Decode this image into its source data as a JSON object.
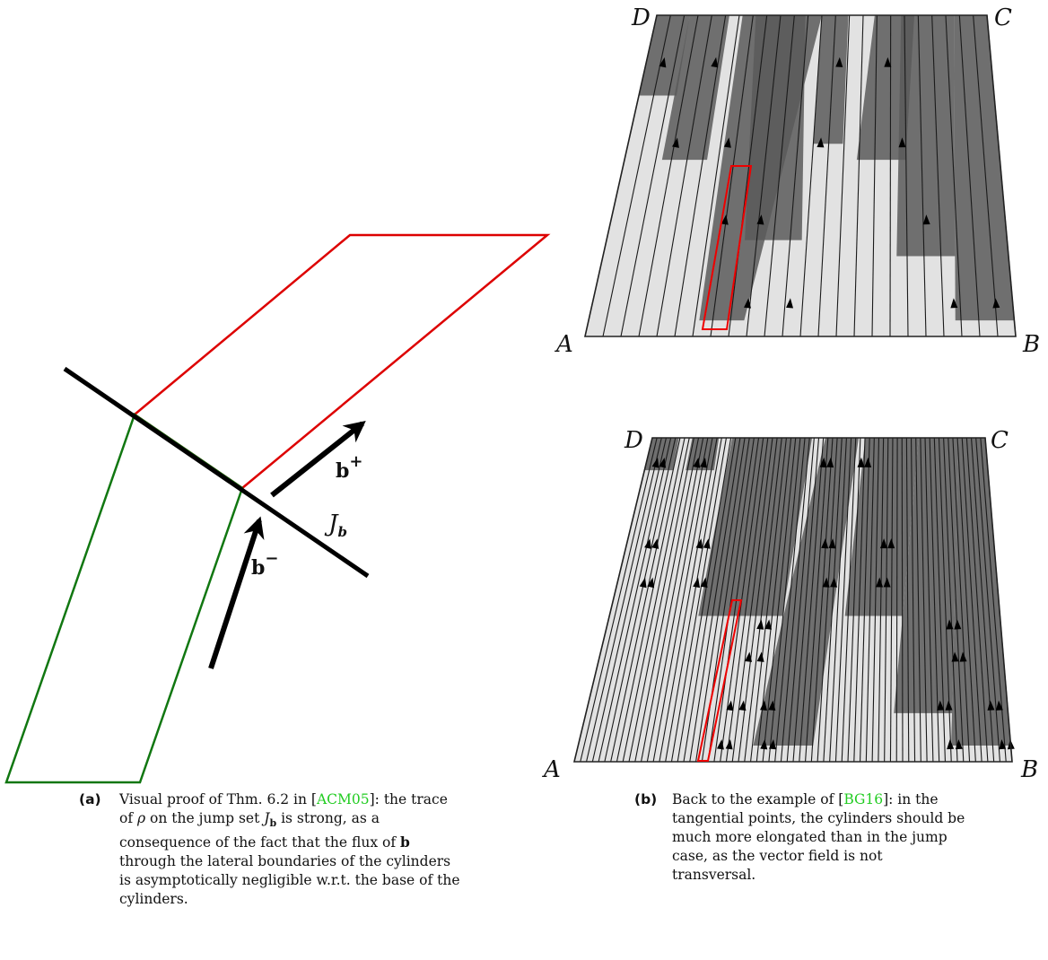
{
  "panel_a": {
    "jump_label": "J",
    "jump_sub": "b",
    "b_plus": "b",
    "b_plus_sup": "+",
    "b_minus": "b",
    "b_minus_sup": "−",
    "colors": {
      "upper": "#dd0000",
      "lower": "#117711",
      "line": "#000000"
    }
  },
  "panel_b": {
    "corners": {
      "A": "A",
      "B": "B",
      "C": "C",
      "D": "D"
    },
    "colors": {
      "highlight": "#ee0000",
      "dark": "#5a5a5a",
      "light": "#e2e2e2"
    }
  },
  "captions": {
    "a": {
      "tag": "(a)",
      "pre": "Visual proof of Thm. 6.2 in [",
      "cite": "ACM05",
      "mid1": "]: the trace of ",
      "rho": "ρ",
      "mid2": " on the jump set ",
      "J": "J",
      "Jsub": "b",
      "mid3": " is strong, as a consequence of the fact that the flux of ",
      "b": "b",
      "post": " through the lateral boundaries of the cylinders is asymptotically negligible w.r.t. the base of the cylinders."
    },
    "b": {
      "tag": "(b)",
      "pre": "Back to the example of [",
      "cite": "BG16",
      "post": "]: in the tangential points, the cylinders should be much more elongated than in the jump case, as the vector field is not transversal."
    }
  }
}
